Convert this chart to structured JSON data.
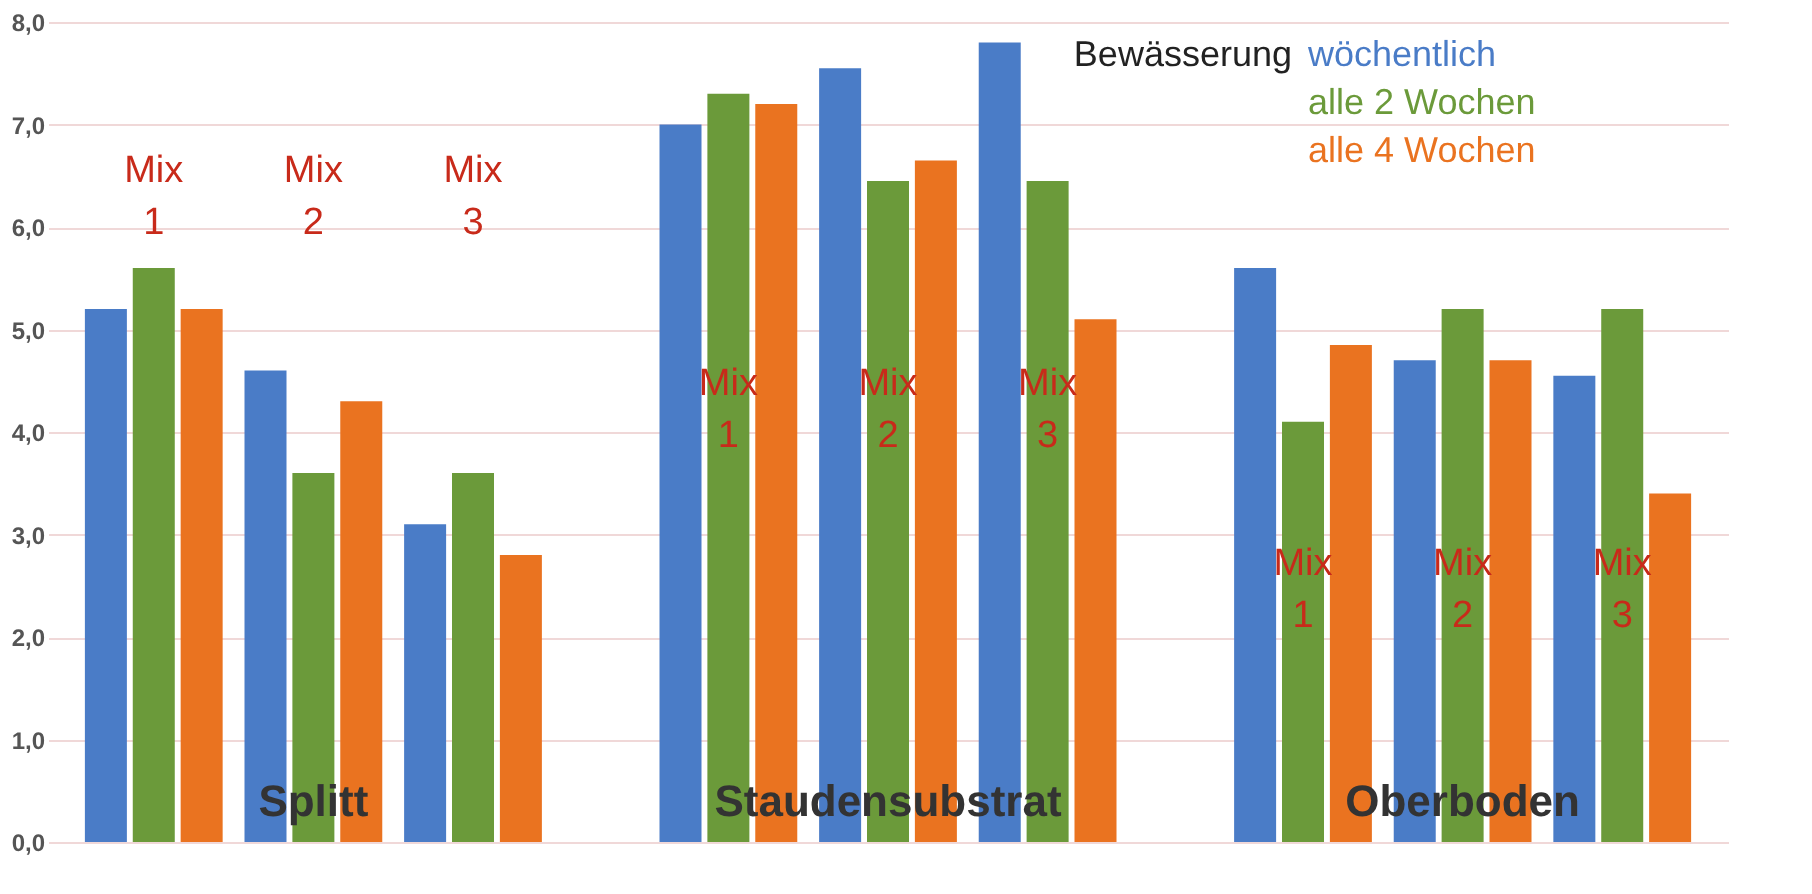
{
  "chart_data": {
    "type": "bar",
    "categories": [
      null,
      null,
      null,
      null,
      null,
      null,
      null,
      null,
      null
    ],
    "series": [
      {
        "name": "wöchentlich",
        "color": "#4a7cc7",
        "values": [
          5.2,
          4.6,
          3.1,
          7.0,
          7.55,
          7.8,
          5.6,
          4.7,
          4.55
        ]
      },
      {
        "name": "alle 2 Wochen",
        "color": "#6b9a3a",
        "values": [
          5.6,
          3.6,
          3.6,
          7.3,
          6.45,
          6.45,
          4.1,
          5.2,
          5.2
        ]
      },
      {
        "name": "alle 4 Wochen",
        "color": "#ea7320",
        "values": [
          5.2,
          4.3,
          2.8,
          7.2,
          6.65,
          5.1,
          4.85,
          4.7,
          3.4
        ]
      }
    ],
    "legend_title": "Bewässerung",
    "legend": "top right",
    "annotations": [
      "Mix 1",
      "Mix 2",
      "Mix 3",
      "Mix 1",
      "Mix 2",
      "Mix 3",
      "Mix 1",
      "Mix 2",
      "Mix 3",
      "Splitt",
      "Staudensubstrat",
      "Oberboden"
    ],
    "ylim": [
      0,
      8
    ],
    "yticks": [
      {
        "value": 0,
        "label": "0,0"
      },
      {
        "value": 1,
        "label": "1,0"
      },
      {
        "value": 2,
        "label": "2,0"
      },
      {
        "value": 3,
        "label": "3,0"
      },
      {
        "value": 4,
        "label": "4,0"
      },
      {
        "value": 5,
        "label": "5,0"
      },
      {
        "value": 6,
        "label": "6,0"
      },
      {
        "value": 7,
        "label": "7,0"
      },
      {
        "value": 8,
        "label": "8,0"
      }
    ],
    "grid": "y"
  }
}
